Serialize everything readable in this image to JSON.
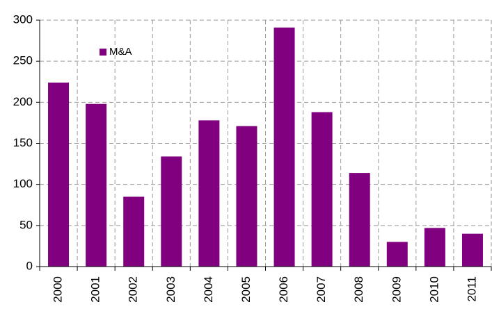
{
  "chart_data": {
    "type": "bar",
    "categories": [
      "2000",
      "2001",
      "2002",
      "2003",
      "2004",
      "2005",
      "2006",
      "2007",
      "2008",
      "2009",
      "2010",
      "2011"
    ],
    "series": [
      {
        "name": "M&A",
        "color": "#800080",
        "values": [
          224,
          198,
          85,
          134,
          178,
          171,
          291,
          188,
          114,
          30,
          47,
          40
        ]
      }
    ],
    "ylim": [
      0,
      300
    ],
    "yticks": [
      0,
      50,
      100,
      150,
      200,
      250,
      300
    ],
    "grid": true,
    "legend": "upper-left"
  }
}
